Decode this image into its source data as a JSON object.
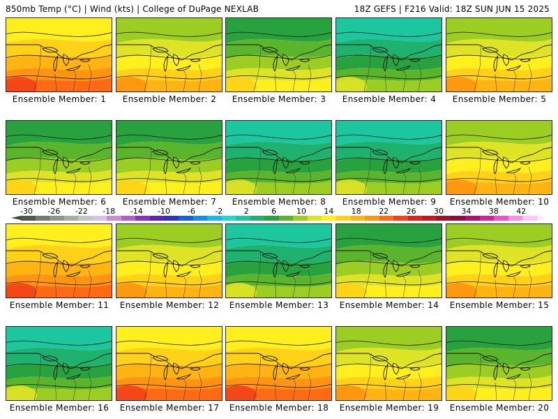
{
  "header": {
    "left": "850mb Temp (°C) | Wind (kts) | College of DuPage NEXLAB",
    "right": "18Z GEFS | F216 Valid: 18Z SUN JUN 15 2025"
  },
  "caption_prefix": "Ensemble Member: ",
  "members": [
    {
      "id": 1,
      "caption": "Ensemble Member: 1",
      "theme": "warm"
    },
    {
      "id": 2,
      "caption": "Ensemble Member: 2",
      "theme": "yellow"
    },
    {
      "id": 3,
      "caption": "Ensemble Member: 3",
      "theme": "mid"
    },
    {
      "id": 4,
      "caption": "Ensemble Member: 4",
      "theme": "cool"
    },
    {
      "id": 5,
      "caption": "Ensemble Member: 5",
      "theme": "yellow"
    },
    {
      "id": 6,
      "caption": "Ensemble Member: 6",
      "theme": "mid"
    },
    {
      "id": 7,
      "caption": "Ensemble Member: 7",
      "theme": "mid"
    },
    {
      "id": 8,
      "caption": "Ensemble Member: 8",
      "theme": "cool"
    },
    {
      "id": 9,
      "caption": "Ensemble Member: 9",
      "theme": "cool"
    },
    {
      "id": 10,
      "caption": "Ensemble Member: 10",
      "theme": "yellow"
    },
    {
      "id": 11,
      "caption": "Ensemble Member: 11",
      "theme": "warm"
    },
    {
      "id": 12,
      "caption": "Ensemble Member: 12",
      "theme": "yellow"
    },
    {
      "id": 13,
      "caption": "Ensemble Member: 13",
      "theme": "cool"
    },
    {
      "id": 14,
      "caption": "Ensemble Member: 14",
      "theme": "mid"
    },
    {
      "id": 15,
      "caption": "Ensemble Member: 15",
      "theme": "yellow"
    },
    {
      "id": 16,
      "caption": "Ensemble Member: 16",
      "theme": "cool"
    },
    {
      "id": 17,
      "caption": "Ensemble Member: 17",
      "theme": "warm"
    },
    {
      "id": 18,
      "caption": "Ensemble Member: 18",
      "theme": "warm"
    },
    {
      "id": 19,
      "caption": "Ensemble Member: 19",
      "theme": "yellow"
    },
    {
      "id": 20,
      "caption": "Ensemble Member: 20",
      "theme": "mid"
    }
  ],
  "colorbar": {
    "labels": [
      "-30",
      "-26",
      "-22",
      "-18",
      "-14",
      "-10",
      "-6",
      "-2",
      "2",
      "6",
      "10",
      "14",
      "18",
      "22",
      "26",
      "30",
      "34",
      "38",
      "42"
    ],
    "colors": [
      "#4b5a4f",
      "#6d7b72",
      "#8a968e",
      "#a5aea8",
      "#c0c6c4",
      "#dcc1e6",
      "#c78bd8",
      "#b35ad2",
      "#8d2fc3",
      "#5b26b6",
      "#2d34c3",
      "#1761dd",
      "#148fe6",
      "#1ab8ee",
      "#20d6d2",
      "#1cc7a0",
      "#1fb26e",
      "#27a23f",
      "#5bb52c",
      "#9ccd22",
      "#dfe325",
      "#fff01d",
      "#ffd218",
      "#ffb412",
      "#ff9410",
      "#ff6a12",
      "#f4421a",
      "#e11f1d",
      "#c7141d",
      "#a50f1f",
      "#8d0d3a",
      "#b20f6f",
      "#d81f9e",
      "#f04dc8",
      "#ff8ee7",
      "#ffc6f3"
    ],
    "low_arrow": "#3a443d",
    "high_arrow": "#ffe1f8"
  },
  "themes": {
    "warm": [
      "#fff01d",
      "#ffd218",
      "#ffb412",
      "#ff9410",
      "#ff6a12",
      "#f4421a"
    ],
    "yellow": [
      "#9ccd22",
      "#dfe325",
      "#fff01d",
      "#ffd218",
      "#ffb412",
      "#ff9410"
    ],
    "mid": [
      "#27a23f",
      "#5bb52c",
      "#9ccd22",
      "#dfe325",
      "#fff01d",
      "#ffd218"
    ],
    "cool": [
      "#1cc7a0",
      "#1fb26e",
      "#27a23f",
      "#5bb52c",
      "#9ccd22",
      "#dfe325"
    ]
  }
}
